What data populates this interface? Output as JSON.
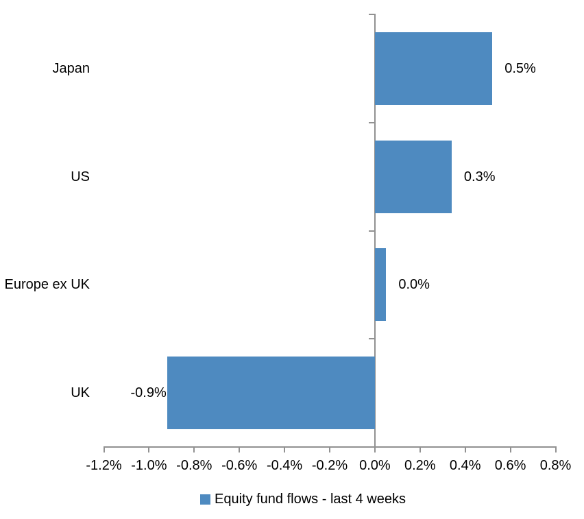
{
  "chart_data": {
    "type": "bar",
    "orientation": "horizontal",
    "title": "",
    "xlabel": "",
    "ylabel": "",
    "categories": [
      "Japan",
      "US",
      "Europe ex UK",
      "UK"
    ],
    "series": [
      {
        "name": "Equity fund flows - last 4 weeks",
        "values": [
          0.52,
          0.34,
          0.05,
          -0.92
        ],
        "data_labels": [
          "0.5%",
          "0.3%",
          "0.0%",
          "-0.9%"
        ],
        "color": "#4E8AC0"
      }
    ],
    "x_axis": {
      "min": -1.2,
      "max": 0.8,
      "tick_step": 0.2,
      "unit": "%",
      "tick_labels": [
        "-1.2%",
        "-1.0%",
        "-0.8%",
        "-0.6%",
        "-0.4%",
        "-0.2%",
        "0.0%",
        "0.2%",
        "0.4%",
        "0.6%",
        "0.8%"
      ]
    },
    "grid": false,
    "legend_position": "bottom",
    "colors": {
      "bar": "#4E8AC0",
      "axis": "#919191",
      "text": "#000000",
      "background": "#FFFFFF"
    }
  },
  "legend": {
    "label": "Equity fund flows - last 4 weeks",
    "marker_color": "#4E8AC0"
  }
}
